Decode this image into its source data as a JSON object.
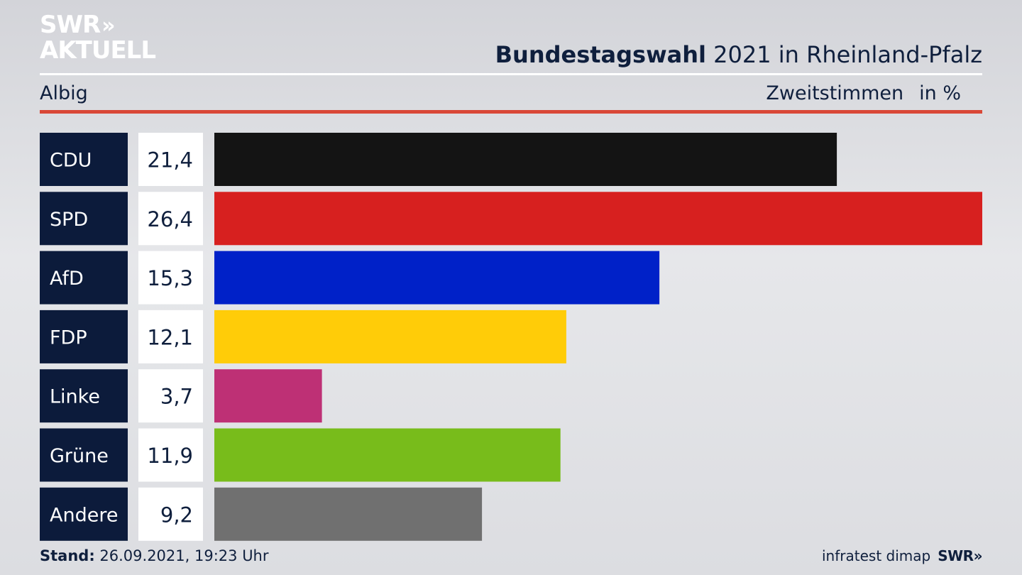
{
  "header": {
    "logo_line1": "SWR",
    "logo_chevrons": "»",
    "logo_line2": "AKTUELL",
    "title_bold": "Bundestagswahl",
    "title_rest": "2021 in Rheinland-Pfalz",
    "place": "Albig",
    "measure": "Zweitstimmen",
    "unit": "in %"
  },
  "footer": {
    "stand_label": "Stand:",
    "stand_value": "26.09.2021, 19:23 Uhr",
    "source": "infratest dimap",
    "brand": "SWR»"
  },
  "chart_data": {
    "type": "bar",
    "orientation": "horizontal",
    "categories": [
      "CDU",
      "SPD",
      "AfD",
      "FDP",
      "Linke",
      "Grüne",
      "Andere"
    ],
    "values": [
      21.4,
      26.4,
      15.3,
      12.1,
      3.7,
      11.9,
      9.2
    ],
    "value_labels": [
      "21,4",
      "26,4",
      "15,3",
      "12,1",
      "3,7",
      "11,9",
      "9,2"
    ],
    "colors": [
      "#141414",
      "#d7201f",
      "#0021c8",
      "#ffcc08",
      "#be3075",
      "#78bc1b",
      "#707070"
    ],
    "label_box_color": "#0c1b3b",
    "value_box_color": "#ffffff",
    "xlim": [
      0,
      26.4
    ],
    "grid": false,
    "legend": "none"
  }
}
